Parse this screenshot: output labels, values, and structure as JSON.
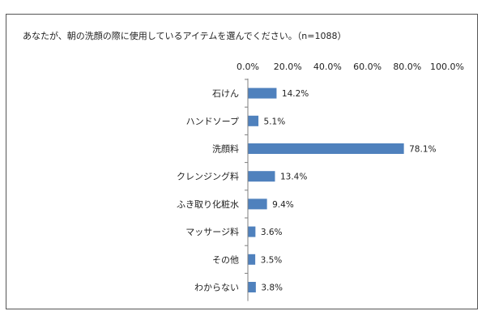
{
  "chart_data": {
    "type": "bar",
    "orientation": "horizontal",
    "title": "あなたが、朝の洗顔の際に使用しているアイテムを選んでください。（n=1088）",
    "categories": [
      "石けん",
      "ハンドソープ",
      "洗顔料",
      "クレンジング料",
      "ふき取り化粧水",
      "マッサージ料",
      "その他",
      "わからない"
    ],
    "values": [
      14.2,
      5.1,
      78.1,
      13.4,
      9.4,
      3.6,
      3.5,
      3.8
    ],
    "value_labels": [
      "14.2%",
      "5.1%",
      "78.1%",
      "13.4%",
      "9.4%",
      "3.6%",
      "3.5%",
      "3.8%"
    ],
    "ticks": [
      "0.0%",
      "20.0%",
      "40.0%",
      "60.0%",
      "80.0%",
      "100.0%"
    ],
    "tick_values": [
      0,
      20,
      40,
      60,
      80,
      100
    ],
    "xlim": [
      0,
      100
    ],
    "axis_position": "top",
    "grid": false,
    "legend": "none",
    "bar_color": "#4f81bd"
  }
}
